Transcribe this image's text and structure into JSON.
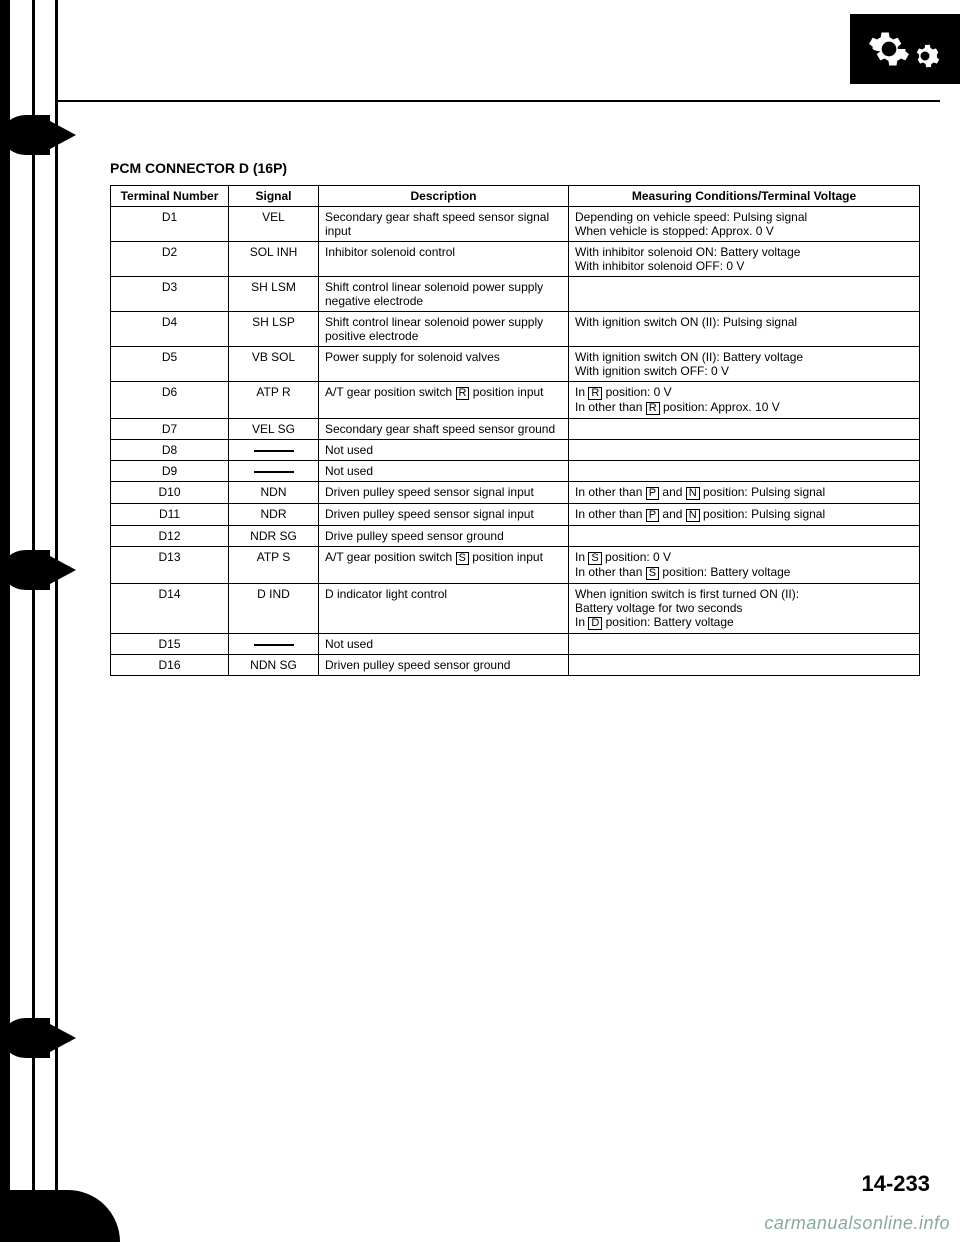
{
  "section_title": "PCM CONNECTOR D (16P)",
  "page_number": "14-233",
  "watermark": "carmanualsonline.info",
  "table": {
    "headers": {
      "terminal": "Terminal Number",
      "signal": "Signal",
      "description": "Description",
      "measuring": "Measuring Conditions/Terminal Voltage"
    },
    "rows": [
      {
        "terminal": "D1",
        "signal": "VEL",
        "description": "Secondary gear shaft speed sensor signal input",
        "measuring": "Depending on vehicle speed: Pulsing signal\nWhen vehicle is stopped: Approx. 0 V"
      },
      {
        "terminal": "D2",
        "signal": "SOL INH",
        "description": "Inhibitor solenoid control",
        "measuring": "With inhibitor solenoid ON: Battery voltage\nWith inhibitor solenoid OFF: 0 V"
      },
      {
        "terminal": "D3",
        "signal": "SH LSM",
        "description": "Shift control linear solenoid power supply negative electrode",
        "measuring": ""
      },
      {
        "terminal": "D4",
        "signal": "SH LSP",
        "description": "Shift control linear solenoid power supply positive electrode",
        "measuring": "With ignition switch ON (II): Pulsing signal"
      },
      {
        "terminal": "D5",
        "signal": "VB SOL",
        "description": "Power supply for solenoid valves",
        "measuring": "With ignition switch ON (II): Battery voltage\nWith ignition switch OFF: 0 V"
      },
      {
        "terminal": "D6",
        "signal": "ATP R",
        "description_html": "A/T gear position switch <span class='boxed'>R</span> position input",
        "measuring_html": "In <span class='boxed'>R</span> position: 0 V<br>In other than <span class='boxed'>R</span> position: Approx. 10 V"
      },
      {
        "terminal": "D7",
        "signal": "VEL SG",
        "description": "Secondary gear shaft speed sensor ground",
        "measuring": ""
      },
      {
        "terminal": "D8",
        "signal_dash": true,
        "description": "Not used",
        "measuring": ""
      },
      {
        "terminal": "D9",
        "signal_dash": true,
        "description": "Not used",
        "measuring": ""
      },
      {
        "terminal": "D10",
        "signal": "NDN",
        "description": "Driven pulley speed sensor signal input",
        "measuring_html": "In other than <span class='boxed'>P</span> and <span class='boxed'>N</span> position: Pulsing signal"
      },
      {
        "terminal": "D11",
        "signal": "NDR",
        "description": "Driven pulley speed sensor signal input",
        "measuring_html": "In other than <span class='boxed'>P</span> and <span class='boxed'>N</span> position: Pulsing signal"
      },
      {
        "terminal": "D12",
        "signal": "NDR SG",
        "description": "Drive pulley speed sensor ground",
        "measuring": ""
      },
      {
        "terminal": "D13",
        "signal": "ATP S",
        "description_html": "A/T gear position switch <span class='boxed'>S</span> position input",
        "measuring_html": "In <span class='boxed'>S</span> position: 0 V<br>In other than <span class='boxed'>S</span> position: Battery voltage"
      },
      {
        "terminal": "D14",
        "signal": "D IND",
        "description": "D indicator light control",
        "measuring_html": "When ignition switch is first turned ON (II):<br>Battery voltage for two seconds<br>In <span class='boxed'>D</span> position: Battery voltage"
      },
      {
        "terminal": "D15",
        "signal_dash": true,
        "description": "Not used",
        "measuring": ""
      },
      {
        "terminal": "D16",
        "signal": "NDN SG",
        "description": "Driven pulley speed sensor ground",
        "measuring": ""
      }
    ]
  }
}
